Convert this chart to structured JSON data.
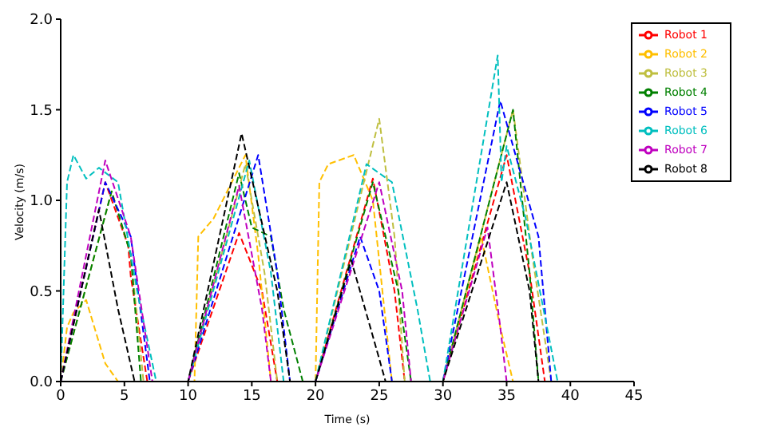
{
  "chart_data": {
    "type": "line",
    "xlabel": "Time (s)",
    "ylabel": "Velocity (m/s)",
    "xlim": [
      0,
      45
    ],
    "ylim": [
      0,
      2
    ],
    "xticks": [
      0,
      5,
      10,
      15,
      20,
      25,
      30,
      35,
      40,
      45
    ],
    "yticks": [
      {
        "value": 0,
        "label": "0.0"
      },
      {
        "value": 0.5,
        "label": "0.5"
      },
      {
        "value": 1,
        "label": "1.0"
      },
      {
        "value": 1.5,
        "label": "1.5"
      },
      {
        "value": 2,
        "label": "2.0"
      }
    ],
    "grid": false,
    "legend": "top right",
    "line_style": "dashed",
    "marker": "none",
    "series": [
      {
        "name": "Robot 1",
        "color": "#ff0000",
        "x": [
          0,
          3.5,
          5.3,
          5.5,
          6.8,
          10,
          14,
          15.8,
          17,
          20,
          24.5,
          26.2,
          27,
          30,
          35,
          36.8,
          38,
          42
        ],
        "values": [
          0,
          1.1,
          0.75,
          0.58,
          0,
          0,
          0.82,
          0.5,
          0,
          0,
          1.12,
          0.5,
          0,
          0,
          1.25,
          0.6,
          0,
          0
        ]
      },
      {
        "name": "Robot 2",
        "color": "#ffbf00",
        "x": [
          0,
          0.5,
          1,
          2,
          3.5,
          4.5,
          10,
          10.5,
          10.8,
          12,
          14.5,
          15.5,
          16.5,
          20,
          20.3,
          21,
          23,
          24.5,
          26,
          30,
          33,
          34.5,
          35.5,
          42
        ],
        "values": [
          0,
          0.3,
          0.38,
          0.45,
          0.1,
          0,
          0,
          0,
          0.8,
          0.9,
          1.25,
          0.7,
          0,
          0,
          1.1,
          1.2,
          1.25,
          1,
          0,
          0,
          0.8,
          0.3,
          0,
          0
        ]
      },
      {
        "name": "Robot 3",
        "color": "#bfbf40",
        "x": [
          0,
          4,
          5.5,
          6.5,
          10,
          14.5,
          16,
          17,
          20,
          25,
          26.2,
          27,
          30,
          35.5,
          37,
          38.5,
          42
        ],
        "values": [
          0,
          1.05,
          0.7,
          0,
          0,
          1.2,
          0.6,
          0,
          0,
          1.45,
          0.8,
          0,
          0,
          1.5,
          0.7,
          0,
          0
        ]
      },
      {
        "name": "Robot 4",
        "color": "#008000",
        "x": [
          0,
          4,
          5.5,
          6.3,
          10,
          14,
          15,
          16.5,
          17.5,
          19,
          20,
          24.5,
          26.5,
          27.5,
          30,
          35.5,
          36.8,
          37.5,
          42
        ],
        "values": [
          0,
          1.05,
          0.7,
          0,
          0,
          1.15,
          0.85,
          0.8,
          0.4,
          0,
          0,
          1.1,
          0.5,
          0,
          0,
          1.5,
          0.6,
          0,
          0
        ]
      },
      {
        "name": "Robot 5",
        "color": "#0000ff",
        "x": [
          0,
          3.5,
          5.5,
          7,
          10,
          15.5,
          17,
          18,
          20,
          23.5,
          25,
          26,
          30,
          34.5,
          37.5,
          38.5,
          42
        ],
        "values": [
          0,
          1.1,
          0.8,
          0,
          0,
          1.25,
          0.6,
          0,
          0,
          0.8,
          0.5,
          0,
          0,
          1.55,
          0.8,
          0,
          0
        ]
      },
      {
        "name": "Robot 6",
        "color": "#00bfbf",
        "x": [
          0,
          0.5,
          1,
          2,
          3,
          4.5,
          6,
          7.5,
          10,
          14.8,
          16.5,
          17.5,
          20,
          24,
          26,
          28,
          29,
          30,
          34.3,
          34.6,
          35,
          36.5,
          39,
          42
        ],
        "values": [
          0,
          1.1,
          1.25,
          1.12,
          1.18,
          1.1,
          0.5,
          0,
          0,
          1.22,
          0.6,
          0,
          0,
          1.2,
          1.1,
          0.4,
          0,
          0,
          1.8,
          1.1,
          1.3,
          0.9,
          0,
          0
        ]
      },
      {
        "name": "Robot 7",
        "color": "#bf00bf",
        "x": [
          0,
          3.5,
          5.5,
          7.2,
          10,
          14,
          15.8,
          16.5,
          20,
          25,
          26.8,
          27.5,
          30,
          33.5,
          34.5,
          35,
          42
        ],
        "values": [
          0,
          1.22,
          0.8,
          0,
          0,
          1.08,
          0.4,
          0,
          0,
          1.1,
          0.5,
          0,
          0,
          0.85,
          0.3,
          0,
          0
        ]
      },
      {
        "name": "Robot 8",
        "color": "#000000",
        "x": [
          0,
          3,
          4.5,
          5.8,
          10,
          14.2,
          17,
          18,
          20,
          22.8,
          24.5,
          25.5,
          30,
          35,
          36.8,
          37.5,
          42
        ],
        "values": [
          0,
          0.95,
          0.4,
          0,
          0,
          1.37,
          0.5,
          0,
          0,
          0.67,
          0.25,
          0,
          0,
          1.1,
          0.5,
          0,
          0
        ]
      }
    ]
  }
}
